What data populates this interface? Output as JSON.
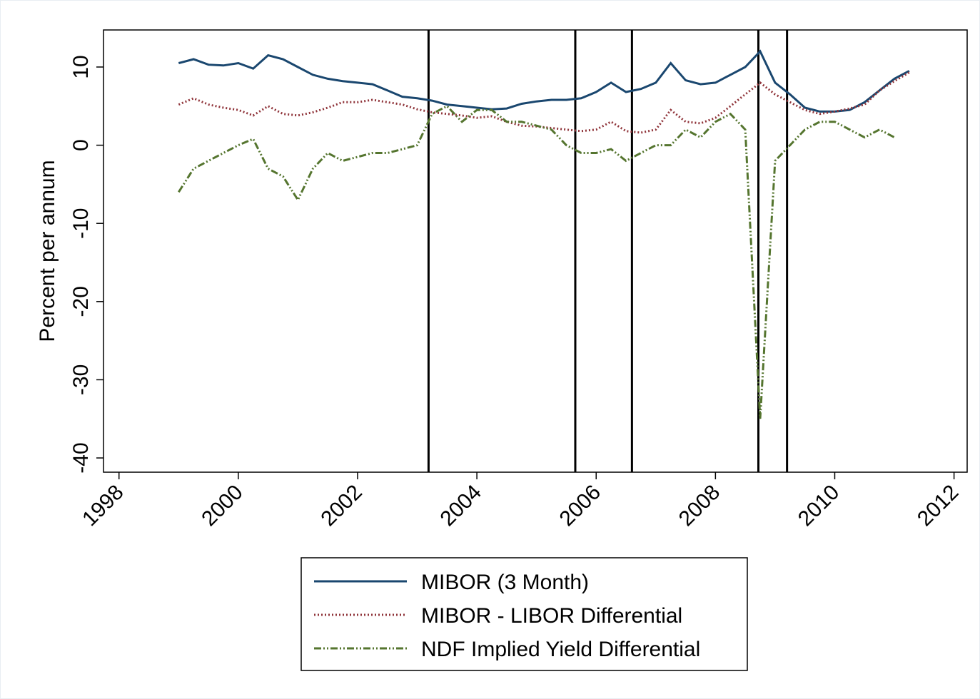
{
  "chart_data": {
    "type": "line",
    "y_label": "Percent per annum",
    "x": [
      1999.0,
      1999.25,
      1999.5,
      1999.75,
      2000.0,
      2000.25,
      2000.5,
      2000.75,
      2001.0,
      2001.25,
      2001.5,
      2001.75,
      2002.0,
      2002.25,
      2002.5,
      2002.75,
      2003.0,
      2003.25,
      2003.5,
      2003.75,
      2004.0,
      2004.25,
      2004.5,
      2004.75,
      2005.0,
      2005.25,
      2005.5,
      2005.75,
      2006.0,
      2006.25,
      2006.5,
      2006.75,
      2007.0,
      2007.25,
      2007.5,
      2007.75,
      2008.0,
      2008.25,
      2008.5,
      2008.75,
      2009.0,
      2009.25,
      2009.5,
      2009.75,
      2010.0,
      2010.25,
      2010.5,
      2010.75,
      2011.0,
      2011.25
    ],
    "series": [
      {
        "name": "MIBOR (3 Month)",
        "color": "#1a476f",
        "style": "solid",
        "values": [
          10.5,
          11,
          10.3,
          10.2,
          10.5,
          9.8,
          11.5,
          11,
          10,
          9,
          8.5,
          8.2,
          8,
          7.8,
          7,
          6.2,
          6,
          5.7,
          5.2,
          5,
          4.8,
          4.6,
          4.7,
          5.3,
          5.6,
          5.8,
          5.8,
          6,
          6.8,
          8,
          6.8,
          7.2,
          8,
          10.5,
          8.3,
          7.8,
          8,
          9,
          10,
          12,
          8,
          6.5,
          4.8,
          4.3,
          4.3,
          4.5,
          5.5,
          7,
          8.5,
          9.5
        ]
      },
      {
        "name": "MIBOR - LIBOR Differential",
        "color": "#90353b",
        "style": "dotted",
        "values": [
          5.2,
          6,
          5.2,
          4.8,
          4.5,
          3.8,
          5,
          4,
          3.8,
          4.2,
          4.8,
          5.5,
          5.5,
          5.8,
          5.5,
          5.2,
          4.6,
          4.2,
          4,
          3.8,
          3.5,
          3.7,
          3,
          2.5,
          2.4,
          2.2,
          2,
          1.8,
          2,
          3,
          1.8,
          1.6,
          2,
          4.5,
          3,
          2.8,
          3.5,
          5,
          6.5,
          8,
          6.5,
          5.5,
          4.5,
          4,
          4.3,
          4.7,
          5.2,
          7,
          8.2,
          9.3
        ]
      },
      {
        "name": "NDF Implied Yield Differential",
        "color": "#55752f",
        "style": "dashdot",
        "values": [
          -6,
          -3,
          -2,
          -1,
          0,
          0.8,
          -3,
          -4,
          -7,
          -3,
          -1,
          -2,
          -1.5,
          -1,
          -1,
          -0.5,
          0,
          4,
          5,
          3,
          4.5,
          4.5,
          3,
          3,
          2.5,
          2,
          0,
          -1,
          -1,
          -0.5,
          -2,
          -1,
          0,
          0,
          2,
          1,
          3,
          4,
          2,
          -35,
          -2,
          0,
          2,
          3,
          3,
          2,
          1,
          2,
          1,
          null
        ]
      }
    ],
    "vlines": [
      2003.19,
      2005.65,
      2006.6,
      2008.72,
      2009.2
    ],
    "xlim": [
      1997.74,
      2012.22
    ],
    "xticks": [
      1998,
      2000,
      2002,
      2004,
      2006,
      2008,
      2010,
      2012
    ],
    "ylim": [
      -41.82,
      14.74
    ],
    "yticks": [
      -40,
      -30,
      -20,
      -10,
      0,
      10
    ],
    "legend": "bottom"
  }
}
